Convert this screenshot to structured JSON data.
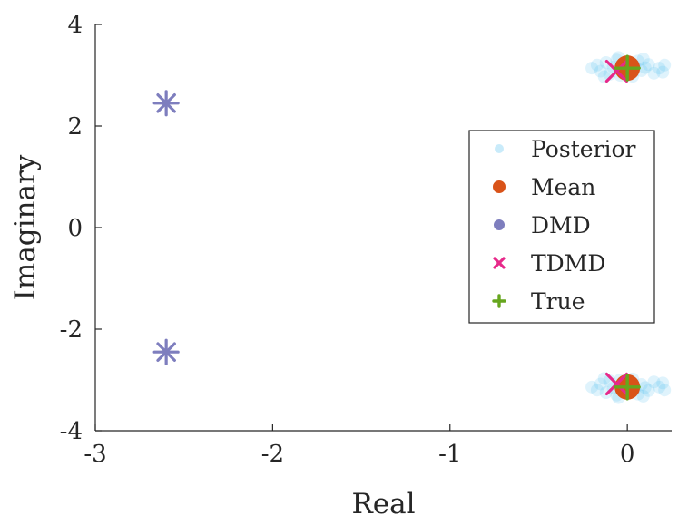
{
  "chart_data": {
    "type": "scatter",
    "xlabel": "Real",
    "ylabel": "Imaginary",
    "xlim": [
      -3,
      0.25
    ],
    "ylim": [
      -4,
      4
    ],
    "x_ticks": [
      -3,
      -2,
      -1,
      0
    ],
    "y_ticks": [
      -4,
      -2,
      0,
      2,
      4
    ],
    "x_tick_labels": [
      "-3",
      "-2",
      "-1",
      "0"
    ],
    "y_tick_labels": [
      "-4",
      "-2",
      "0",
      "2",
      "4"
    ],
    "grid": false,
    "legend_position": "right",
    "series": [
      {
        "name": "Posterior",
        "marker": "circle-faint",
        "color": "#4DBEEE",
        "points": [
          [
            -0.2,
            3.14
          ],
          [
            -0.17,
            3.2
          ],
          [
            -0.15,
            3.08
          ],
          [
            -0.12,
            3.25
          ],
          [
            -0.1,
            3.02
          ],
          [
            -0.08,
            3.16
          ],
          [
            -0.06,
            3.3
          ],
          [
            -0.04,
            3.0
          ],
          [
            -0.02,
            3.12
          ],
          [
            0.0,
            3.22
          ],
          [
            0.02,
            3.05
          ],
          [
            0.04,
            3.18
          ],
          [
            0.06,
            3.28
          ],
          [
            0.08,
            3.09
          ],
          [
            0.1,
            3.15
          ],
          [
            0.12,
            3.21
          ],
          [
            0.15,
            3.04
          ],
          [
            0.18,
            3.14
          ],
          [
            0.21,
            3.2
          ],
          [
            -0.05,
            3.35
          ],
          [
            0.03,
            2.98
          ],
          [
            0.09,
            3.32
          ],
          [
            -0.13,
            2.97
          ],
          [
            0.2,
            3.06
          ],
          [
            -0.2,
            -3.14
          ],
          [
            -0.17,
            -3.2
          ],
          [
            -0.15,
            -3.08
          ],
          [
            -0.12,
            -3.25
          ],
          [
            -0.1,
            -3.02
          ],
          [
            -0.08,
            -3.16
          ],
          [
            -0.06,
            -3.3
          ],
          [
            -0.04,
            -3.0
          ],
          [
            -0.02,
            -3.12
          ],
          [
            0.0,
            -3.22
          ],
          [
            0.02,
            -3.05
          ],
          [
            0.04,
            -3.18
          ],
          [
            0.06,
            -3.28
          ],
          [
            0.08,
            -3.09
          ],
          [
            0.1,
            -3.15
          ],
          [
            0.12,
            -3.21
          ],
          [
            0.15,
            -3.04
          ],
          [
            0.18,
            -3.14
          ],
          [
            0.21,
            -3.2
          ],
          [
            -0.05,
            -3.35
          ],
          [
            0.03,
            -2.98
          ],
          [
            0.09,
            -3.32
          ],
          [
            -0.13,
            -2.97
          ],
          [
            0.2,
            -3.06
          ]
        ]
      },
      {
        "name": "Mean",
        "marker": "circle",
        "color": "#D95319",
        "points": [
          [
            0.0,
            3.14
          ],
          [
            0.0,
            -3.14
          ]
        ]
      },
      {
        "name": "DMD",
        "marker": "asterisk",
        "color": "#7E7EBE",
        "points": [
          [
            -2.6,
            2.45
          ],
          [
            -2.6,
            -2.45
          ]
        ]
      },
      {
        "name": "TDMD",
        "marker": "x",
        "color": "#E7298A",
        "points": [
          [
            -0.06,
            3.08
          ],
          [
            -0.06,
            -3.08
          ]
        ]
      },
      {
        "name": "True",
        "marker": "plus",
        "color": "#66A61E",
        "points": [
          [
            0.0,
            3.14
          ],
          [
            0.0,
            -3.14
          ]
        ]
      }
    ]
  }
}
